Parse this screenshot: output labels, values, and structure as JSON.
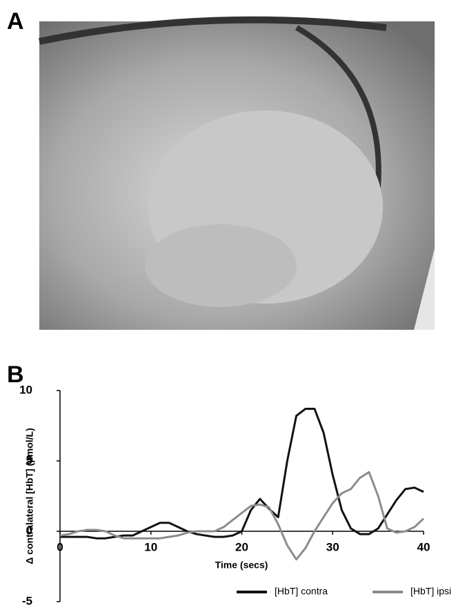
{
  "figure": {
    "photo_label": "A"
  },
  "chart_data": {
    "type": "line",
    "panel_label": "B",
    "xlabel": "Time (secs)",
    "ylabel": "Δ contralateral [HbT] (μmol/L)",
    "x": [
      0,
      1,
      2,
      3,
      4,
      5,
      6,
      7,
      8,
      9,
      10,
      11,
      12,
      13,
      14,
      15,
      16,
      17,
      18,
      19,
      20,
      21,
      22,
      23,
      24,
      25,
      26,
      27,
      28,
      29,
      30,
      31,
      32,
      33,
      34,
      35,
      36,
      37,
      38,
      39,
      40
    ],
    "series": [
      {
        "name": "[HbT] contra",
        "color": "#111111",
        "values": [
          -0.4,
          -0.4,
          -0.4,
          -0.4,
          -0.5,
          -0.5,
          -0.4,
          -0.3,
          -0.3,
          0,
          0.3,
          0.6,
          0.6,
          0.3,
          0,
          -0.2,
          -0.3,
          -0.4,
          -0.4,
          -0.3,
          0,
          1.5,
          2.3,
          1.6,
          1.0,
          5,
          8.2,
          8.7,
          8.7,
          7,
          4,
          1.5,
          0.2,
          -0.2,
          -0.2,
          0.2,
          1.2,
          2.2,
          3.0,
          3.1,
          2.8
        ]
      },
      {
        "name": "[HbT] ipsi",
        "color": "#8c8c8c",
        "values": [
          -0.3,
          -0.2,
          0,
          0.1,
          0.1,
          0,
          -0.3,
          -0.5,
          -0.5,
          -0.5,
          -0.5,
          -0.5,
          -0.4,
          -0.3,
          -0.1,
          0,
          0,
          0,
          0.3,
          0.8,
          1.3,
          1.8,
          1.9,
          1.7,
          0.5,
          -1,
          -2,
          -1.2,
          0,
          1,
          2,
          2.7,
          3,
          3.8,
          4.2,
          2.5,
          0.2,
          -0.1,
          0,
          0.3,
          0.9
        ]
      }
    ],
    "xlim": [
      0,
      40
    ],
    "xticks": [
      0,
      10,
      20,
      30,
      40
    ],
    "ylim": [
      -5,
      10
    ],
    "yticks": [
      -5,
      0,
      5,
      10
    ]
  }
}
